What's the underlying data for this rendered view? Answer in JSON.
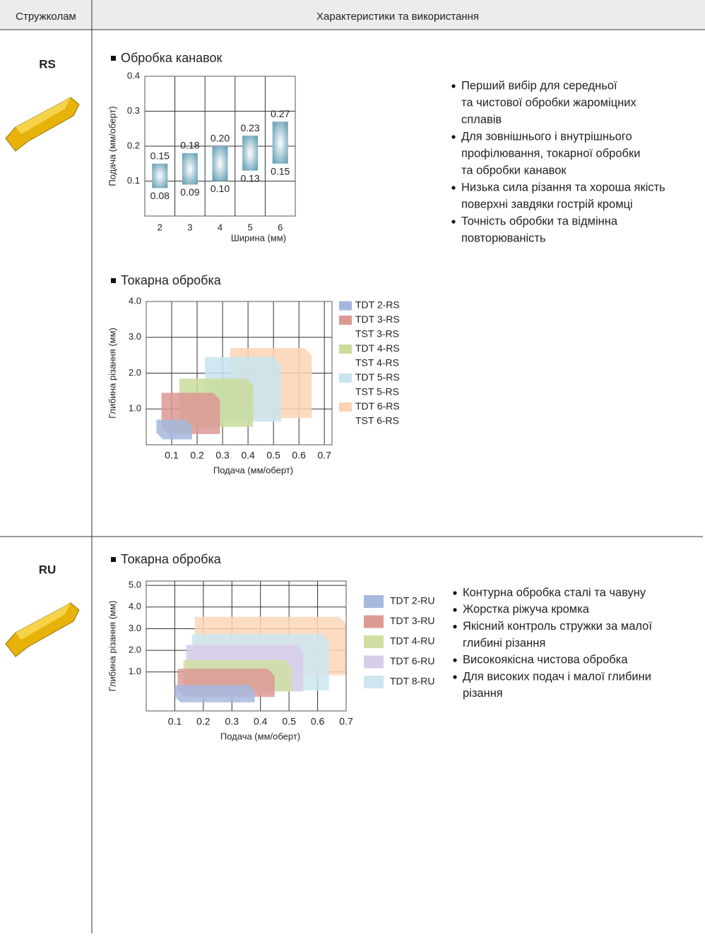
{
  "header": {
    "col1": "Стружколам",
    "col2": "Характеристики та використання"
  },
  "sections": [
    {
      "label": "RS",
      "charts": [
        {
          "type": "range_bar",
          "title": "Обробка канавок",
          "x_label": "Ширина (мм)",
          "y_label": "Подача (мм/оберт)",
          "categories": [
            "2",
            "3",
            "4",
            "5",
            "6"
          ],
          "low": [
            0.08,
            0.09,
            0.1,
            0.13,
            0.15
          ],
          "low_labels": [
            "0.08",
            "0.09",
            "0.10",
            "0.13",
            "0.15"
          ],
          "high": [
            0.15,
            0.18,
            0.2,
            0.23,
            0.27
          ],
          "high_labels": [
            "0.15",
            "0.18",
            "0.20",
            "0.23",
            "0.27"
          ],
          "ylim": [
            0,
            0.4
          ],
          "yticks": [
            0.1,
            0.2,
            0.3,
            0.4
          ],
          "grid": true
        },
        {
          "type": "region",
          "title": "Токарна обробка",
          "x_label": "Подача (мм/оберт)",
          "y_label": "Глибина різання (мм)",
          "xlim": [
            0,
            0.73
          ],
          "xticks": [
            0.1,
            0.2,
            0.3,
            0.4,
            0.5,
            0.6,
            0.7
          ],
          "ylim": [
            0,
            4
          ],
          "yticks": [
            {
              "value": 1,
              "label": "1.0"
            },
            {
              "value": 2,
              "label": "2.0"
            },
            {
              "value": 3,
              "label": "3.0"
            },
            {
              "value": 4,
              "label": "4.0"
            }
          ],
          "grid": true,
          "series": [
            {
              "name": "TDT 2-RS",
              "color": "#a3b8dc",
              "x": [
                0.04,
                0.18
              ],
              "y": [
                0.15,
                0.7
              ]
            },
            {
              "name": "TDT 3-RS",
              "alt_name": "TST 3-RS",
              "color": "#dc9893",
              "x": [
                0.06,
                0.29
              ],
              "y": [
                0.3,
                1.45
              ]
            },
            {
              "name": "TDT 4-RS",
              "alt_name": "TST 4-RS",
              "color": "#c9dc9c",
              "x": [
                0.13,
                0.42
              ],
              "y": [
                0.5,
                1.85
              ]
            },
            {
              "name": "TDT 5-RS",
              "alt_name": "TST 5-RS",
              "color": "#c8e4ee",
              "x": [
                0.23,
                0.53
              ],
              "y": [
                0.65,
                2.45
              ]
            },
            {
              "name": "TDT 6-RS",
              "alt_name": "TST 6-RS",
              "color": "#fbd3b3",
              "x": [
                0.33,
                0.65
              ],
              "y": [
                0.75,
                2.7
              ]
            }
          ]
        }
      ],
      "bullets": [
        [
          "Перший вибір для середньої",
          "та чистової обробки жароміцних",
          "сплавів"
        ],
        [
          "Для зовнішнього і внутрішнього",
          "профілювання, токарної обробки",
          "та обробки канавок"
        ],
        [
          "Низька сила різання та хороша якість",
          "поверхні завдяки гострій кромці"
        ],
        [
          "Точність обробки та відмінна",
          "повторюваність"
        ]
      ]
    },
    {
      "label": "RU",
      "charts": [
        {
          "type": "region",
          "title": "Токарна обробка",
          "x_label": "Подача (мм/оберт)",
          "y_label": "Глибина різання (мм)",
          "xlim": [
            0,
            0.7
          ],
          "xticks": [
            0.1,
            0.2,
            0.3,
            0.4,
            0.5,
            0.6,
            0.7
          ],
          "ylim": [
            -0.8,
            5.2
          ],
          "yticks": [
            {
              "value": 1,
              "label": "1.0"
            },
            {
              "value": 2,
              "label": "2.0"
            },
            {
              "value": 3,
              "label": "3.0"
            },
            {
              "value": 4,
              "label": "4.0"
            },
            {
              "value": 5,
              "label": "5.0"
            }
          ],
          "grid": true,
          "series": [
            {
              "name": "TDT 2-RU",
              "color": "#a7b9df",
              "x": [
                0.1,
                0.38
              ],
              "y": [
                -0.4,
                0.4
              ]
            },
            {
              "name": "TDT 3-RU",
              "color": "#dd9a95",
              "x": [
                0.11,
                0.45
              ],
              "y": [
                -0.15,
                1.15
              ]
            },
            {
              "name": "TDT 4-RU",
              "color": "#cfe0a2",
              "x": [
                0.13,
                0.51
              ],
              "y": [
                0.1,
                1.55
              ]
            },
            {
              "name": "TDT 6-RU",
              "color": "#d7cde8",
              "x": [
                0.14,
                0.55
              ],
              "y": [
                0.1,
                2.25
              ]
            },
            {
              "name": "TDT 8-RU",
              "color": "#cde6f0",
              "x": [
                0.16,
                0.64
              ],
              "y": [
                0.15,
                2.75
              ]
            },
            {
              "name": null,
              "color": "#fbd6b8",
              "x": [
                0.17,
                0.7
              ],
              "y": [
                0.85,
                3.55
              ]
            }
          ]
        }
      ],
      "bullets": [
        [
          "Контурна обробка сталі та чавуну"
        ],
        [
          "Жорстка ріжуча кромка"
        ],
        [
          "Якісний контроль стружки за малої",
          "глибині різання"
        ],
        [
          "Високоякісна чистова обробка"
        ],
        [
          "Для високих подач і малої глибини",
          "різання"
        ]
      ]
    }
  ]
}
